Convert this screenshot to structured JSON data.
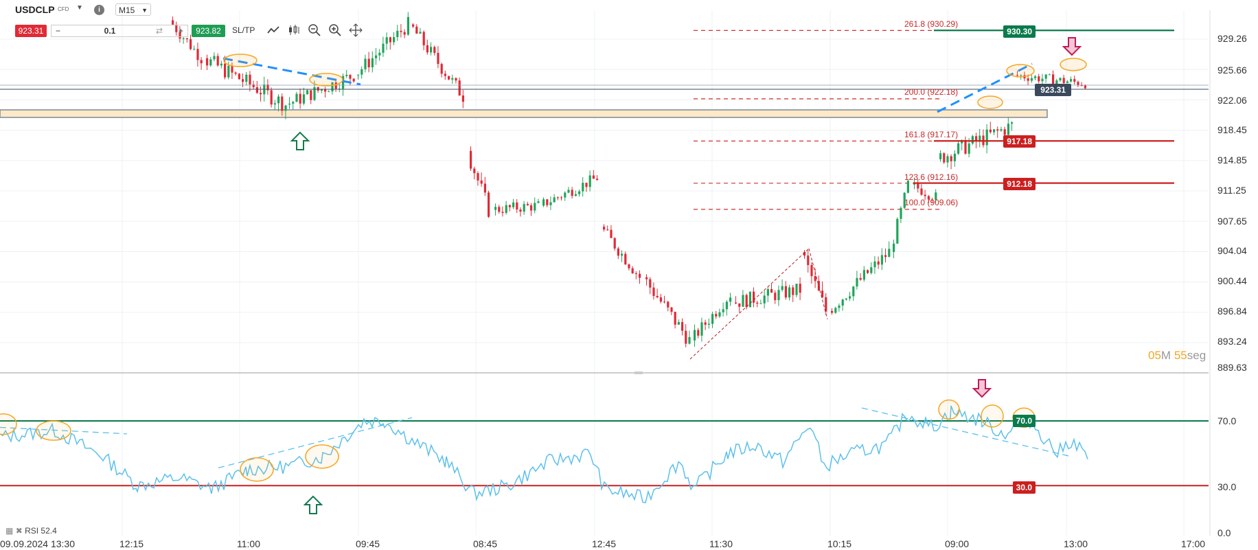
{
  "toolbar": {
    "symbol": "USDCLP",
    "symbol_tag": "CFD",
    "caret": "▼",
    "info": "i",
    "timeframe": "M15",
    "timeframe_caret": "▼",
    "bid": "923.31",
    "minus": "−",
    "quantity": "0.1",
    "swap": "⇄",
    "plus": "+",
    "ask": "923.82",
    "sltp": "SL/TP",
    "icons": [
      "line-chart-icon",
      "candles-icon",
      "zoom-out-icon",
      "zoom-in-icon",
      "crosshair-icon"
    ]
  },
  "price_axis": [
    "929.26",
    "925.66",
    "922.06",
    "918.45",
    "914.85",
    "911.25",
    "907.65",
    "904.04",
    "900.44",
    "896.84",
    "893.24",
    "889.63"
  ],
  "rsi_axis": [
    "70.0",
    "30.0",
    "0.0"
  ],
  "time_axis": [
    "09.09.2024 13:30",
    "12:15",
    "11:00",
    "09:45",
    "08:45",
    "12:45",
    "11:30",
    "10:15",
    "09:00",
    "13:00",
    "17:00"
  ],
  "price_tags": {
    "current": "923.31",
    "level_top": "930.30",
    "level_mid": "917.18",
    "level_low": "912.18",
    "rsi_high": "70.0",
    "rsi_low": "30.0"
  },
  "fib_labels": [
    "261.8 (930.29)",
    "200.0 (922.18)",
    "161.8 (917.17)",
    "123.6 (912.16)",
    "100.0 (909.06)"
  ],
  "timer": {
    "minutes": "05",
    "m": "M",
    "seconds": "55",
    "seg": "seg"
  },
  "rsi_label": "RSI 52.4",
  "colors": {
    "bull": "#1fa55a",
    "bear": "#e02a36",
    "rsi": "#5bc0eb",
    "level_green": "#0a7a4c",
    "level_red": "#cc1f1f",
    "fib": "#d32f2f",
    "trend": "#1e90ff",
    "highlight": "#f5a623",
    "zone": "#fde8c8"
  }
}
